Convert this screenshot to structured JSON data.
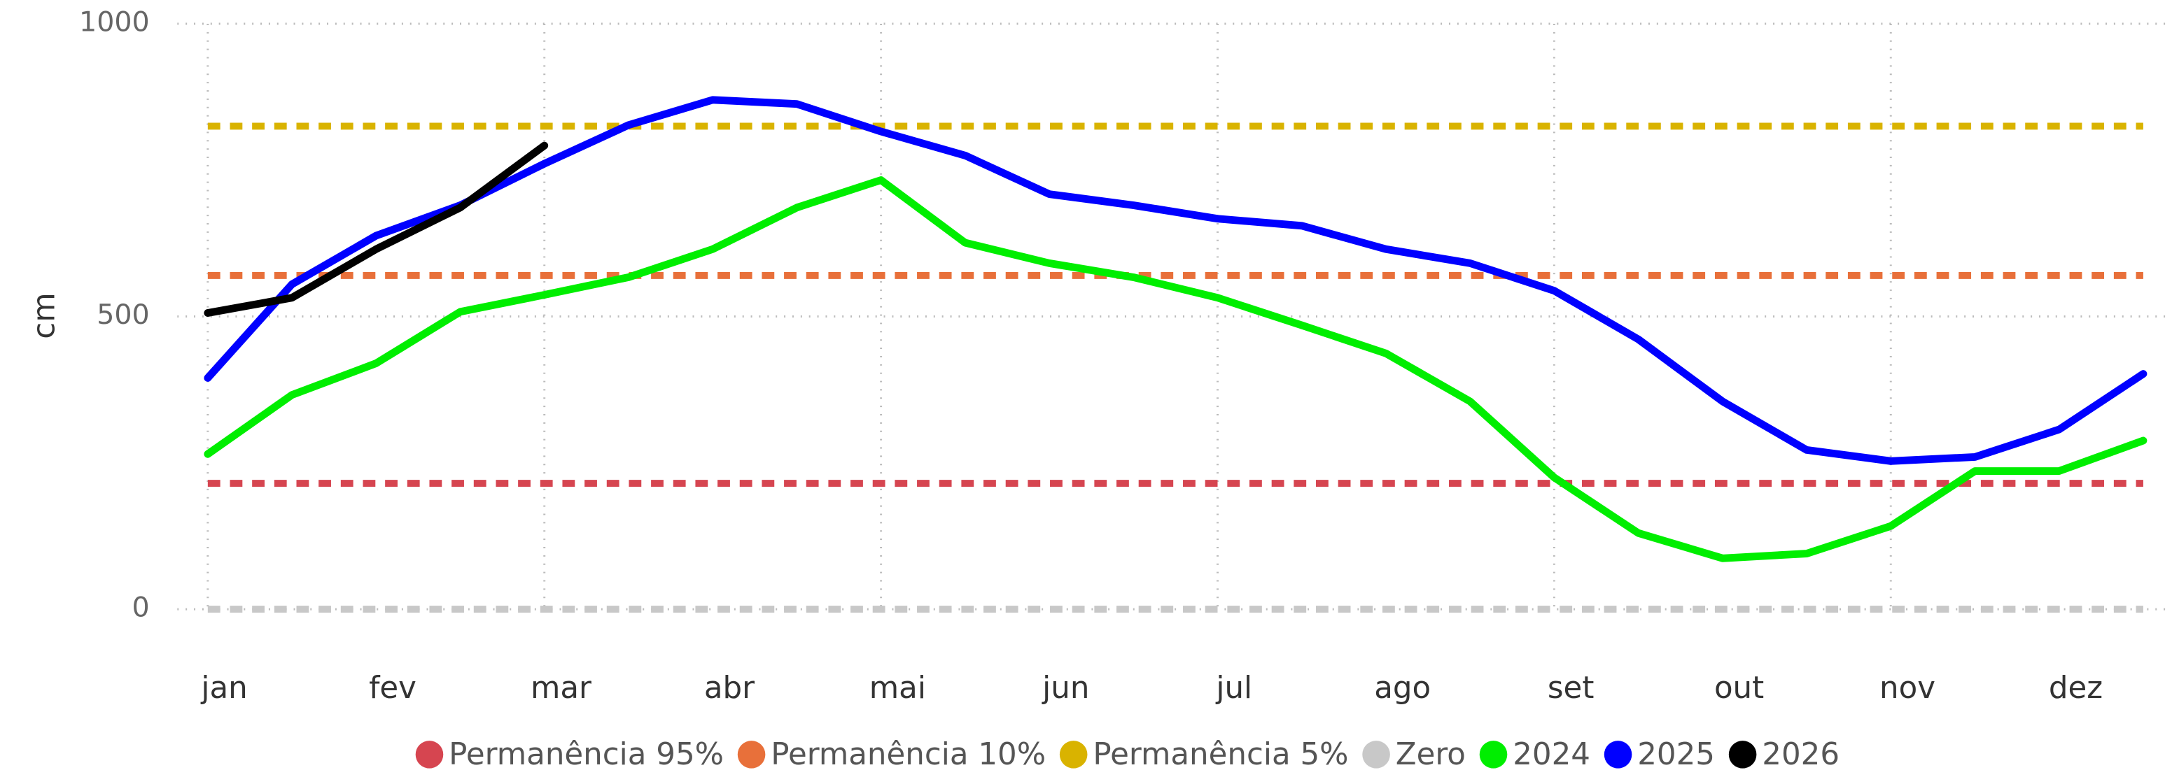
{
  "chart_data": {
    "type": "line",
    "y_label": "cm",
    "categories": [
      "jan",
      null,
      "fev",
      null,
      "mar",
      null,
      "abr",
      null,
      "mai",
      null,
      "jun",
      null,
      "jul",
      null,
      "ago",
      null,
      "set",
      null,
      "out",
      null,
      "nov",
      null,
      "dez",
      null
    ],
    "ylim": [
      0,
      1000
    ],
    "yticks": [
      0,
      500,
      1000
    ],
    "grid": true,
    "legend": "bottom",
    "series": [
      {
        "name": "Permanência 95%",
        "color": "#d64550",
        "style": "dashed",
        "values": [
          215,
          215,
          215,
          215,
          215,
          215,
          215,
          215,
          215,
          215,
          215,
          215,
          215,
          215,
          215,
          215,
          215,
          215,
          215,
          215,
          215,
          215,
          215,
          215
        ]
      },
      {
        "name": "Permanência 10%",
        "color": "#e8703a",
        "style": "dashed",
        "values": [
          570,
          570,
          570,
          570,
          570,
          570,
          570,
          570,
          570,
          570,
          570,
          570,
          570,
          570,
          570,
          570,
          570,
          570,
          570,
          570,
          570,
          570,
          570,
          570
        ]
      },
      {
        "name": "Permanência 5%",
        "color": "#d9b300",
        "style": "dashed",
        "values": [
          825,
          825,
          825,
          825,
          825,
          825,
          825,
          825,
          825,
          825,
          825,
          825,
          825,
          825,
          825,
          825,
          825,
          825,
          825,
          825,
          825,
          825,
          825,
          825
        ]
      },
      {
        "name": "Zero",
        "color": "#c8c8c8",
        "style": "dashed",
        "values": [
          0,
          0,
          0,
          0,
          0,
          0,
          0,
          0,
          0,
          0,
          0,
          0,
          0,
          0,
          0,
          0,
          0,
          0,
          0,
          0,
          0,
          0,
          0,
          0
        ]
      },
      {
        "name": "2024",
        "color": "#00ee00",
        "style": "solid",
        "values": [
          265,
          366,
          420,
          508,
          537,
          567,
          615,
          686,
          733,
          626,
          591,
          567,
          532,
          485,
          437,
          355,
          225,
          130,
          87,
          95,
          142,
          236,
          236,
          288
        ]
      },
      {
        "name": "2025",
        "color": "#0000ff",
        "style": "solid",
        "values": [
          395,
          555,
          638,
          690,
          761,
          827,
          870,
          863,
          816,
          775,
          709,
          690,
          667,
          655,
          615,
          591,
          544,
          461,
          355,
          272,
          253,
          260,
          307,
          402
        ]
      },
      {
        "name": "2026",
        "color": "#000000",
        "style": "solid",
        "values": [
          506,
          532,
          615,
          686,
          792,
          null,
          null,
          null,
          null,
          null,
          null,
          null,
          null,
          null,
          null,
          null,
          null,
          null,
          null,
          null,
          null,
          null,
          null,
          null
        ]
      }
    ]
  }
}
